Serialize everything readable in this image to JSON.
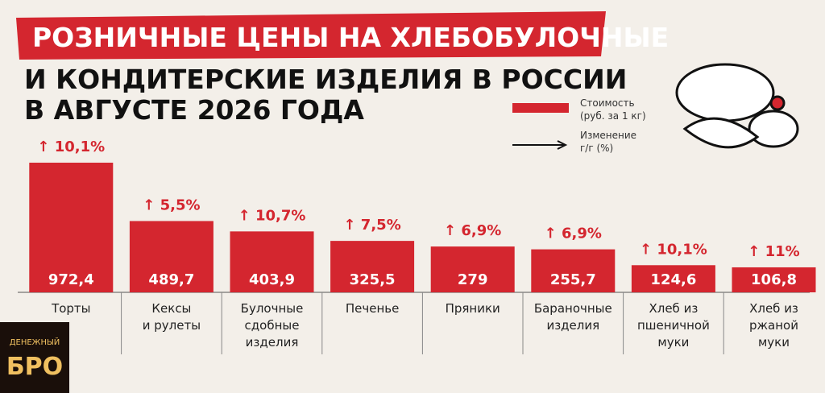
{
  "chart_data": {
    "type": "bar",
    "title": "РОЗНИЧНЫЕ ЦЕНЫ НА ХЛЕБОБУЛОЧНЫЕ",
    "subtitle": [
      "И КОНДИТЕРСКИЕ ИЗДЕЛИЯ В РОССИИ",
      "В АВГУСТЕ 2026 ГОДА"
    ],
    "categories": [
      "Торты",
      "Кексы\nи рулеты",
      "Булочные\nсдобные\nизделия",
      "Печенье",
      "Пряники",
      "Бараночные\nизделия",
      "Хлеб из\nпшеничной\nмуки",
      "Хлеб из\nржаной\nмуки"
    ],
    "series": [
      {
        "name": "Стоимость\n(руб. за 1 кг)",
        "color": "#d4262f",
        "values": [
          972.4,
          489.7,
          403.9,
          325.5,
          279,
          255.7,
          124.6,
          106.8
        ],
        "value_labels": [
          "972,4",
          "489,7",
          "403,9",
          "325,5",
          "279",
          "255,7",
          "124,6",
          "106,8"
        ]
      },
      {
        "name": "Изменение\nг/г (%)",
        "color": "#111111",
        "values": [
          10.1,
          5.5,
          10.7,
          7.5,
          6.9,
          6.9,
          10.1,
          11
        ],
        "value_labels": [
          "↑ 10,1%",
          "↑ 5,5%",
          "↑ 10,7%",
          "↑ 7,5%",
          "↑ 6,9%",
          "↑ 6,9%",
          "↑ 10,1%",
          "↑ 11%"
        ]
      }
    ]
  },
  "logo": {
    "top": "ДЕНЕЖНЫЙ",
    "bottom": "БРО"
  }
}
